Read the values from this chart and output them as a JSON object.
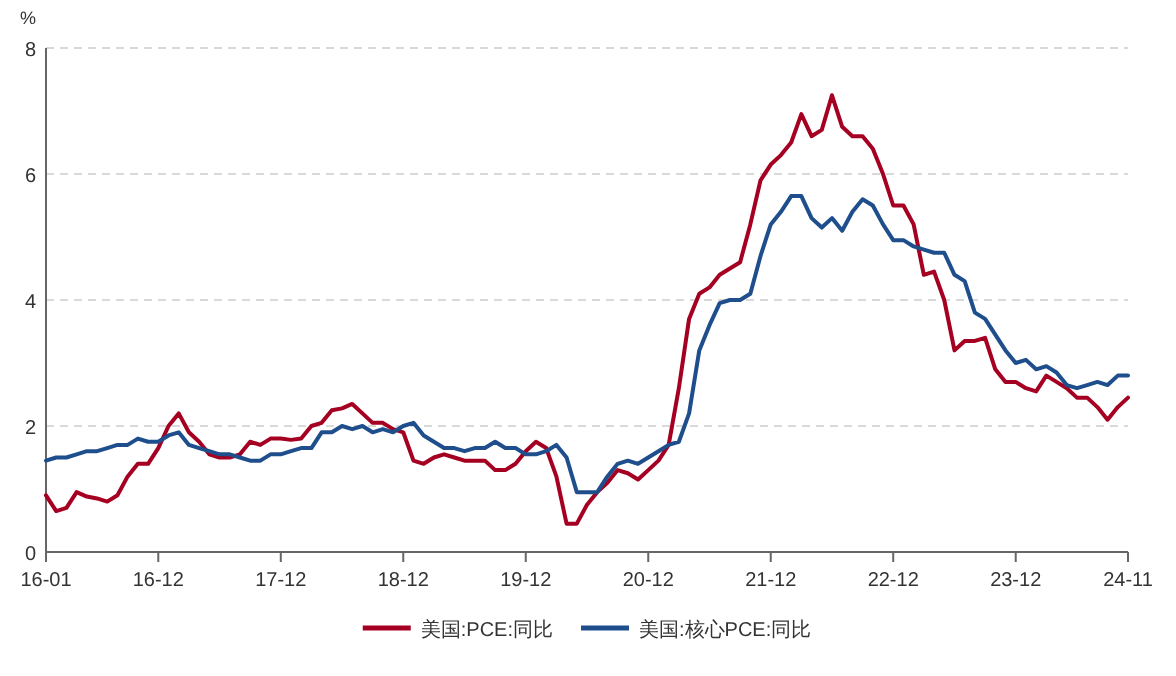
{
  "chart_data": {
    "type": "line",
    "ylabel": "%",
    "categories": [
      "16-01",
      null,
      null,
      null,
      null,
      null,
      null,
      null,
      null,
      null,
      null,
      "16-12",
      null,
      null,
      null,
      null,
      null,
      null,
      null,
      null,
      null,
      null,
      null,
      "17-12",
      null,
      null,
      null,
      null,
      null,
      null,
      null,
      null,
      null,
      null,
      null,
      "18-12",
      null,
      null,
      null,
      null,
      null,
      null,
      null,
      null,
      null,
      null,
      null,
      "19-12",
      null,
      null,
      null,
      null,
      null,
      null,
      null,
      null,
      null,
      null,
      null,
      "20-12",
      null,
      null,
      null,
      null,
      null,
      null,
      null,
      null,
      null,
      null,
      null,
      "21-12",
      null,
      null,
      null,
      null,
      null,
      null,
      null,
      null,
      null,
      null,
      null,
      "22-12",
      null,
      null,
      null,
      null,
      null,
      null,
      null,
      null,
      null,
      null,
      null,
      "23-12",
      null,
      null,
      null,
      null,
      null,
      null,
      null,
      null,
      null,
      null,
      "24-11"
    ],
    "series": [
      {
        "name": "美国:PCE:同比",
        "color": "#a50021",
        "values": [
          0.9,
          0.65,
          0.7,
          0.95,
          0.88,
          0.85,
          0.8,
          0.9,
          1.2,
          1.4,
          1.4,
          1.65,
          2.0,
          2.2,
          1.9,
          1.75,
          1.55,
          1.5,
          1.5,
          1.55,
          1.75,
          1.7,
          1.8,
          1.8,
          1.78,
          1.8,
          2.0,
          2.05,
          2.25,
          2.28,
          2.35,
          2.2,
          2.05,
          2.05,
          1.95,
          1.9,
          1.45,
          1.4,
          1.5,
          1.55,
          1.5,
          1.45,
          1.45,
          1.45,
          1.3,
          1.3,
          1.4,
          1.6,
          1.75,
          1.65,
          1.2,
          0.45,
          0.45,
          0.75,
          0.95,
          1.1,
          1.3,
          1.25,
          1.15,
          1.3,
          1.45,
          1.7,
          2.6,
          3.7,
          4.1,
          4.2,
          4.4,
          4.5,
          4.6,
          5.2,
          5.9,
          6.15,
          6.3,
          6.5,
          6.95,
          6.6,
          6.7,
          7.25,
          6.75,
          6.6,
          6.6,
          6.4,
          6.0,
          5.5,
          5.5,
          5.2,
          4.4,
          4.45,
          4.0,
          3.2,
          3.35,
          3.35,
          3.4,
          2.9,
          2.7,
          2.7,
          2.6,
          2.55,
          2.8,
          2.7,
          2.6,
          2.45,
          2.45,
          2.3,
          2.1,
          2.3,
          2.45
        ]
      },
      {
        "name": "美国:核心PCE:同比",
        "color": "#1f4e8c",
        "values": [
          1.45,
          1.5,
          1.5,
          1.55,
          1.6,
          1.6,
          1.65,
          1.7,
          1.7,
          1.8,
          1.75,
          1.75,
          1.85,
          1.9,
          1.7,
          1.65,
          1.6,
          1.55,
          1.55,
          1.5,
          1.45,
          1.45,
          1.55,
          1.55,
          1.6,
          1.65,
          1.65,
          1.9,
          1.9,
          2.0,
          1.95,
          2.0,
          1.9,
          1.95,
          1.9,
          2.0,
          2.05,
          1.85,
          1.75,
          1.65,
          1.65,
          1.6,
          1.65,
          1.65,
          1.75,
          1.65,
          1.65,
          1.55,
          1.55,
          1.6,
          1.7,
          1.5,
          0.95,
          0.95,
          0.95,
          1.2,
          1.4,
          1.45,
          1.4,
          1.5,
          1.6,
          1.7,
          1.75,
          2.2,
          3.2,
          3.6,
          3.95,
          4.0,
          4.0,
          4.1,
          4.7,
          5.2,
          5.4,
          5.65,
          5.65,
          5.3,
          5.15,
          5.3,
          5.1,
          5.4,
          5.6,
          5.5,
          5.2,
          4.95,
          4.95,
          4.85,
          4.8,
          4.75,
          4.75,
          4.4,
          4.3,
          3.8,
          3.7,
          3.45,
          3.2,
          3.0,
          3.05,
          2.9,
          2.95,
          2.85,
          2.65,
          2.6,
          2.65,
          2.7,
          2.65,
          2.8,
          2.8
        ]
      }
    ],
    "ylim": [
      0,
      8
    ],
    "yticks": [
      0,
      2,
      4,
      6,
      8
    ],
    "grid": "y",
    "legend": "bottom",
    "line_style": "solid",
    "marker": "none"
  }
}
